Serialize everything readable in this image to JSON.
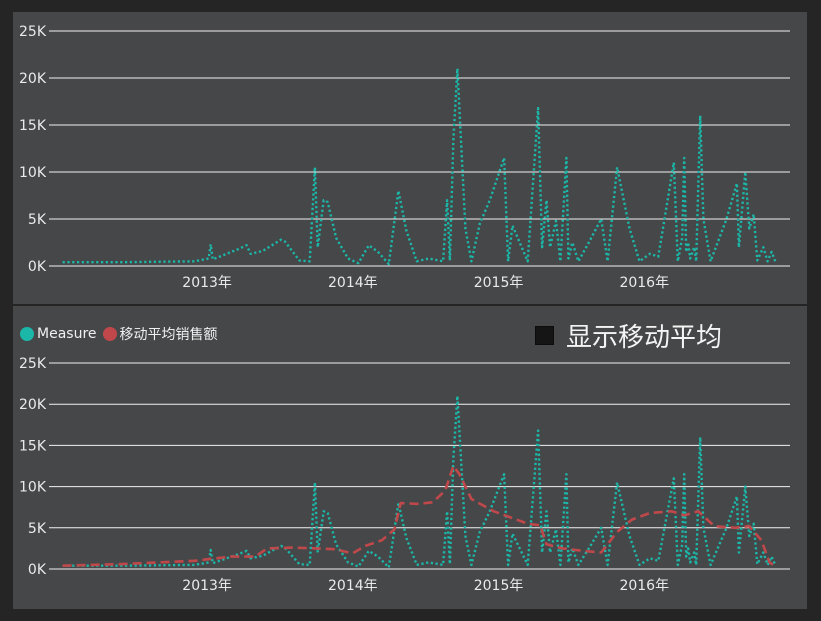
{
  "colors": {
    "measure": "#1BB8A9",
    "moving_average": "#C0484A",
    "panel": "#464749",
    "background": "#252526",
    "grid": "#f2f2f2"
  },
  "legend": {
    "measure": "Measure",
    "moving_average": "移动平均销售额"
  },
  "toggle": {
    "label": "显示移动平均",
    "checked": true
  },
  "chart_data": [
    {
      "type": "line",
      "ylim": [
        0,
        25000
      ],
      "yticks": [
        {
          "value": 0,
          "label": "0K"
        },
        {
          "value": 5000,
          "label": "5K"
        },
        {
          "value": 10000,
          "label": "10K"
        },
        {
          "value": 15000,
          "label": "15K"
        },
        {
          "value": 20000,
          "label": "20K"
        },
        {
          "value": 25000,
          "label": "25K"
        }
      ],
      "xlim": [
        "2012-01-01",
        "2016-12-31"
      ],
      "xticks": [
        {
          "value": "2013-01-01",
          "label": "2013年"
        },
        {
          "value": "2014-01-01",
          "label": "2014年"
        },
        {
          "value": "2015-01-01",
          "label": "2015年"
        },
        {
          "value": "2016-01-01",
          "label": "2016年"
        }
      ],
      "grid": true,
      "series": [
        {
          "name": "Measure",
          "style": "dotted",
          "points": [
            [
              "2012-01-05",
              400
            ],
            [
              "2012-06-01",
              400
            ],
            [
              "2012-12-01",
              500
            ],
            [
              "2013-01-05",
              800
            ],
            [
              "2013-01-10",
              2300
            ],
            [
              "2013-01-15",
              700
            ],
            [
              "2013-03-20",
              1800
            ],
            [
              "2013-04-10",
              2200
            ],
            [
              "2013-04-20",
              1300
            ],
            [
              "2013-05-20",
              1600
            ],
            [
              "2013-07-05",
              2800
            ],
            [
              "2013-07-15",
              2600
            ],
            [
              "2013-08-20",
              600
            ],
            [
              "2013-09-15",
              500
            ],
            [
              "2013-09-28",
              10500
            ],
            [
              "2013-10-05",
              2000
            ],
            [
              "2013-10-20",
              7000
            ],
            [
              "2013-10-30",
              6800
            ],
            [
              "2013-11-20",
              3000
            ],
            [
              "2013-12-20",
              800
            ],
            [
              "2014-01-15",
              300
            ],
            [
              "2014-02-10",
              2200
            ],
            [
              "2014-03-05",
              1500
            ],
            [
              "2014-04-01",
              200
            ],
            [
              "2014-04-25",
              8000
            ],
            [
              "2014-05-15",
              3800
            ],
            [
              "2014-06-10",
              500
            ],
            [
              "2014-07-10",
              800
            ],
            [
              "2014-08-15",
              500
            ],
            [
              "2014-08-25",
              7000
            ],
            [
              "2014-09-01",
              600
            ],
            [
              "2014-09-10",
              13500
            ],
            [
              "2014-09-20",
              21000
            ],
            [
              "2014-10-10",
              4000
            ],
            [
              "2014-10-25",
              500
            ],
            [
              "2014-11-15",
              4500
            ],
            [
              "2014-12-10",
              7000
            ],
            [
              "2015-01-15",
              11500
            ],
            [
              "2015-01-25",
              500
            ],
            [
              "2015-02-05",
              4300
            ],
            [
              "2015-02-20",
              2800
            ],
            [
              "2015-03-15",
              500
            ],
            [
              "2015-04-10",
              16800
            ],
            [
              "2015-04-20",
              2000
            ],
            [
              "2015-05-01",
              7000
            ],
            [
              "2015-05-10",
              2000
            ],
            [
              "2015-05-25",
              4800
            ],
            [
              "2015-06-05",
              500
            ],
            [
              "2015-06-20",
              11500
            ],
            [
              "2015-06-25",
              800
            ],
            [
              "2015-07-05",
              2500
            ],
            [
              "2015-07-20",
              500
            ],
            [
              "2015-08-15",
              2500
            ],
            [
              "2015-09-15",
              5000
            ],
            [
              "2015-10-01",
              500
            ],
            [
              "2015-10-25",
              10500
            ],
            [
              "2015-11-25",
              4000
            ],
            [
              "2015-12-20",
              500
            ],
            [
              "2016-01-15",
              1300
            ],
            [
              "2016-02-05",
              1000
            ],
            [
              "2016-03-15",
              11000
            ],
            [
              "2016-03-25",
              500
            ],
            [
              "2016-04-05",
              3000
            ],
            [
              "2016-04-10",
              11500
            ],
            [
              "2016-04-15",
              1500
            ],
            [
              "2016-04-20",
              2500
            ],
            [
              "2016-04-25",
              800
            ],
            [
              "2016-05-05",
              2000
            ],
            [
              "2016-05-10",
              500
            ],
            [
              "2016-05-20",
              16000
            ],
            [
              "2016-05-28",
              5000
            ],
            [
              "2016-06-15",
              500
            ],
            [
              "2016-07-25",
              5000
            ],
            [
              "2016-08-20",
              8800
            ],
            [
              "2016-08-25",
              2000
            ],
            [
              "2016-09-10",
              10000
            ],
            [
              "2016-09-20",
              4000
            ],
            [
              "2016-10-01",
              5500
            ],
            [
              "2016-10-10",
              600
            ],
            [
              "2016-10-25",
              2000
            ],
            [
              "2016-11-05",
              500
            ],
            [
              "2016-11-15",
              1500
            ],
            [
              "2016-11-25",
              400
            ]
          ]
        }
      ]
    },
    {
      "type": "line",
      "ylim": [
        0,
        25000
      ],
      "yticks": [
        {
          "value": 0,
          "label": "0K"
        },
        {
          "value": 5000,
          "label": "5K"
        },
        {
          "value": 10000,
          "label": "10K"
        },
        {
          "value": 15000,
          "label": "15K"
        },
        {
          "value": 20000,
          "label": "20K"
        },
        {
          "value": 25000,
          "label": "25K"
        }
      ],
      "xlim": [
        "2012-01-01",
        "2016-12-31"
      ],
      "xticks": [
        {
          "value": "2013-01-01",
          "label": "2013年"
        },
        {
          "value": "2014-01-01",
          "label": "2014年"
        },
        {
          "value": "2015-01-01",
          "label": "2015年"
        },
        {
          "value": "2016-01-01",
          "label": "2016年"
        }
      ],
      "grid": true,
      "legend_position": "top-left",
      "series": [
        {
          "name": "Measure",
          "style": "dotted",
          "points": [
            [
              "2012-01-05",
              400
            ],
            [
              "2012-06-01",
              400
            ],
            [
              "2012-12-01",
              500
            ],
            [
              "2013-01-05",
              800
            ],
            [
              "2013-01-10",
              2300
            ],
            [
              "2013-01-15",
              700
            ],
            [
              "2013-03-20",
              1800
            ],
            [
              "2013-04-10",
              2200
            ],
            [
              "2013-04-20",
              1300
            ],
            [
              "2013-05-20",
              1600
            ],
            [
              "2013-07-05",
              2800
            ],
            [
              "2013-07-15",
              2600
            ],
            [
              "2013-08-20",
              600
            ],
            [
              "2013-09-15",
              500
            ],
            [
              "2013-09-28",
              10500
            ],
            [
              "2013-10-05",
              2000
            ],
            [
              "2013-10-20",
              7000
            ],
            [
              "2013-10-30",
              6800
            ],
            [
              "2013-11-20",
              3000
            ],
            [
              "2013-12-20",
              800
            ],
            [
              "2014-01-15",
              300
            ],
            [
              "2014-02-10",
              2200
            ],
            [
              "2014-03-05",
              1500
            ],
            [
              "2014-04-01",
              200
            ],
            [
              "2014-04-25",
              8000
            ],
            [
              "2014-05-15",
              3800
            ],
            [
              "2014-06-10",
              500
            ],
            [
              "2014-07-10",
              800
            ],
            [
              "2014-08-15",
              500
            ],
            [
              "2014-08-25",
              7000
            ],
            [
              "2014-09-01",
              600
            ],
            [
              "2014-09-10",
              13500
            ],
            [
              "2014-09-20",
              21000
            ],
            [
              "2014-10-10",
              4000
            ],
            [
              "2014-10-25",
              500
            ],
            [
              "2014-11-15",
              4500
            ],
            [
              "2014-12-10",
              7000
            ],
            [
              "2015-01-15",
              11500
            ],
            [
              "2015-01-25",
              500
            ],
            [
              "2015-02-05",
              4300
            ],
            [
              "2015-02-20",
              2800
            ],
            [
              "2015-03-15",
              500
            ],
            [
              "2015-04-10",
              16800
            ],
            [
              "2015-04-20",
              2000
            ],
            [
              "2015-05-01",
              7000
            ],
            [
              "2015-05-10",
              2000
            ],
            [
              "2015-05-25",
              4800
            ],
            [
              "2015-06-05",
              500
            ],
            [
              "2015-06-20",
              11500
            ],
            [
              "2015-06-25",
              800
            ],
            [
              "2015-07-05",
              2500
            ],
            [
              "2015-07-20",
              500
            ],
            [
              "2015-08-15",
              2500
            ],
            [
              "2015-09-15",
              5000
            ],
            [
              "2015-10-01",
              500
            ],
            [
              "2015-10-25",
              10500
            ],
            [
              "2015-11-25",
              4000
            ],
            [
              "2015-12-20",
              500
            ],
            [
              "2016-01-15",
              1300
            ],
            [
              "2016-02-05",
              1000
            ],
            [
              "2016-03-15",
              11000
            ],
            [
              "2016-03-25",
              500
            ],
            [
              "2016-04-05",
              3000
            ],
            [
              "2016-04-10",
              11500
            ],
            [
              "2016-04-15",
              1500
            ],
            [
              "2016-04-20",
              2500
            ],
            [
              "2016-04-25",
              800
            ],
            [
              "2016-05-05",
              2000
            ],
            [
              "2016-05-10",
              500
            ],
            [
              "2016-05-20",
              16000
            ],
            [
              "2016-05-28",
              5000
            ],
            [
              "2016-06-15",
              500
            ],
            [
              "2016-07-25",
              5000
            ],
            [
              "2016-08-20",
              8800
            ],
            [
              "2016-08-25",
              2000
            ],
            [
              "2016-09-10",
              10000
            ],
            [
              "2016-09-20",
              4000
            ],
            [
              "2016-10-01",
              5500
            ],
            [
              "2016-10-10",
              600
            ],
            [
              "2016-10-25",
              2000
            ],
            [
              "2016-11-05",
              500
            ],
            [
              "2016-11-15",
              1500
            ],
            [
              "2016-11-25",
              400
            ]
          ]
        },
        {
          "name": "移动平均销售额",
          "style": "dashed",
          "points": [
            [
              "2012-01-05",
              400
            ],
            [
              "2012-06-01",
              600
            ],
            [
              "2012-12-01",
              1000
            ],
            [
              "2013-03-01",
              1500
            ],
            [
              "2013-05-01",
              1500
            ],
            [
              "2013-06-01",
              2500
            ],
            [
              "2013-08-01",
              2600
            ],
            [
              "2013-10-01",
              2500
            ],
            [
              "2013-11-15",
              2400
            ],
            [
              "2014-01-01",
              1900
            ],
            [
              "2014-02-01",
              2800
            ],
            [
              "2014-03-15",
              3500
            ],
            [
              "2014-04-15",
              4800
            ],
            [
              "2014-05-01",
              8000
            ],
            [
              "2014-06-15",
              7900
            ],
            [
              "2014-07-20",
              8100
            ],
            [
              "2014-08-20",
              9500
            ],
            [
              "2014-09-10",
              12500
            ],
            [
              "2014-09-25",
              11500
            ],
            [
              "2014-10-25",
              8500
            ],
            [
              "2014-12-20",
              7000
            ],
            [
              "2015-02-15",
              6000
            ],
            [
              "2015-03-15",
              5500
            ],
            [
              "2015-04-15",
              5300
            ],
            [
              "2015-05-01",
              3000
            ],
            [
              "2015-06-10",
              2500
            ],
            [
              "2015-08-01",
              2200
            ],
            [
              "2015-09-15",
              2000
            ],
            [
              "2015-10-25",
              4500
            ],
            [
              "2015-12-01",
              6000
            ],
            [
              "2016-01-15",
              6800
            ],
            [
              "2016-03-10",
              7000
            ],
            [
              "2016-04-10",
              6500
            ],
            [
              "2016-05-15",
              7000
            ],
            [
              "2016-06-25",
              5200
            ],
            [
              "2016-08-15",
              5000
            ],
            [
              "2016-09-20",
              5200
            ],
            [
              "2016-10-20",
              3500
            ],
            [
              "2016-11-10",
              800
            ],
            [
              "2016-11-28",
              200
            ]
          ]
        }
      ]
    }
  ]
}
